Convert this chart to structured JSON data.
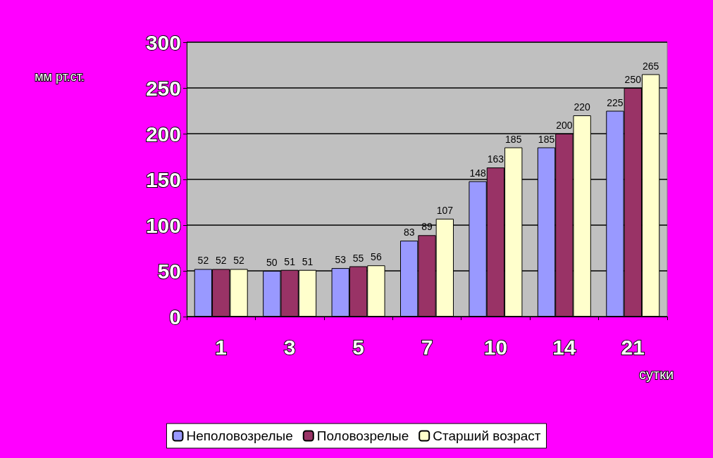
{
  "chart_data": {
    "type": "bar",
    "xlabel": "сутки",
    "ylabel": "мм рт.ст.",
    "categories": [
      "1",
      "3",
      "5",
      "7",
      "10",
      "14",
      "21"
    ],
    "series": [
      {
        "name": "Неполовозрелые",
        "color": "#9999ff",
        "values": [
          52,
          50,
          53,
          83,
          148,
          185,
          225
        ]
      },
      {
        "name": "Половозрелые",
        "color": "#993366",
        "values": [
          52,
          51,
          55,
          89,
          163,
          200,
          250
        ]
      },
      {
        "name": "Старший возраст",
        "color": "#ffffcc",
        "values": [
          52,
          51,
          56,
          107,
          185,
          220,
          265
        ]
      }
    ],
    "ylim": [
      0,
      300
    ],
    "yticks": [
      0,
      50,
      100,
      150,
      200,
      250,
      300
    ],
    "grid": "y",
    "legend": "bottom",
    "data_labels": true
  }
}
